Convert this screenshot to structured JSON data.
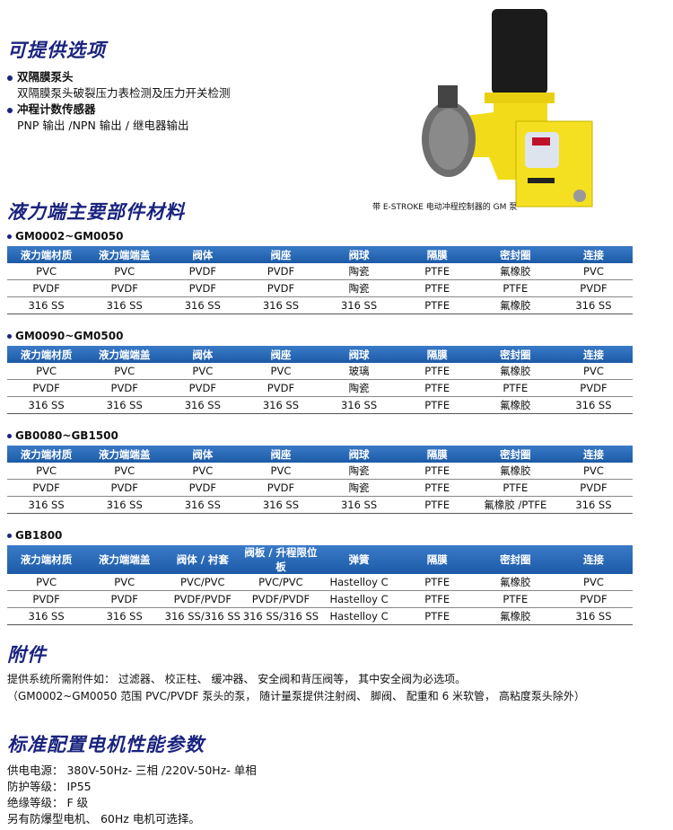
{
  "options": {
    "title": "可提供选项",
    "items": [
      {
        "heading": "双隔膜泵头",
        "detail": "双隔膜泵头破裂压力表检测及压力开关检测"
      },
      {
        "heading": "冲程计数传感器",
        "detail": "PNP 输出 /NPN 输出 / 继电器输出"
      }
    ]
  },
  "image": {
    "caption": "带 E-STROKE 电动冲程控制器的 GM 泵",
    "logo_text": "E-STROKE"
  },
  "materials": {
    "title": "液力端主要部件材料",
    "tables": [
      {
        "label": "GM0002~GM0050",
        "headers": [
          "液力端材质",
          "液力端端盖",
          "阀体",
          "阀座",
          "阀球",
          "隔膜",
          "密封圈",
          "连接"
        ],
        "rows": [
          [
            "PVC",
            "PVC",
            "PVDF",
            "PVDF",
            "陶瓷",
            "PTFE",
            "氟橡胶",
            "PVC"
          ],
          [
            "PVDF",
            "PVDF",
            "PVDF",
            "PVDF",
            "陶瓷",
            "PTFE",
            "PTFE",
            "PVDF"
          ],
          [
            "316 SS",
            "316 SS",
            "316 SS",
            "316 SS",
            "316 SS",
            "PTFE",
            "氟橡胶",
            "316 SS"
          ]
        ]
      },
      {
        "label": "GM0090~GM0500",
        "headers": [
          "液力端材质",
          "液力端端盖",
          "阀体",
          "阀座",
          "阀球",
          "隔膜",
          "密封圈",
          "连接"
        ],
        "rows": [
          [
            "PVC",
            "PVC",
            "PVC",
            "PVC",
            "玻璃",
            "PTFE",
            "氟橡胶",
            "PVC"
          ],
          [
            "PVDF",
            "PVDF",
            "PVDF",
            "PVDF",
            "陶瓷",
            "PTFE",
            "PTFE",
            "PVDF"
          ],
          [
            "316 SS",
            "316 SS",
            "316 SS",
            "316 SS",
            "316 SS",
            "PTFE",
            "氟橡胶",
            "316 SS"
          ]
        ]
      },
      {
        "label": "GB0080~GB1500",
        "headers": [
          "液力端材质",
          "液力端端盖",
          "阀体",
          "阀座",
          "阀球",
          "隔膜",
          "密封圈",
          "连接"
        ],
        "rows": [
          [
            "PVC",
            "PVC",
            "PVC",
            "PVC",
            "陶瓷",
            "PTFE",
            "氟橡胶",
            "PVC"
          ],
          [
            "PVDF",
            "PVDF",
            "PVDF",
            "PVDF",
            "陶瓷",
            "PTFE",
            "PTFE",
            "PVDF"
          ],
          [
            "316 SS",
            "316 SS",
            "316 SS",
            "316 SS",
            "316 SS",
            "PTFE",
            "氟橡胶 /PTFE",
            "316 SS"
          ]
        ]
      },
      {
        "label": "GB1800",
        "headers": [
          "液力端材质",
          "液力端端盖",
          "阀体 / 衬套",
          "阀板 / 升程限位板",
          "弹簧",
          "隔膜",
          "密封圈",
          "连接"
        ],
        "rows": [
          [
            "PVC",
            "PVC",
            "PVC/PVC",
            "PVC/PVC",
            "Hastelloy C",
            "PTFE",
            "氟橡胶",
            "PVC"
          ],
          [
            "PVDF",
            "PVDF",
            "PVDF/PVDF",
            "PVDF/PVDF",
            "Hastelloy C",
            "PTFE",
            "PTFE",
            "PVDF"
          ],
          [
            "316 SS",
            "316 SS",
            "316 SS/316 SS",
            "316 SS/316 SS",
            "Hastelloy C",
            "PTFE",
            "氟橡胶",
            "316 SS"
          ]
        ]
      }
    ]
  },
  "accessories": {
    "title": "附件",
    "lines": [
      "提供系统所需附件如： 过滤器、 校正柱、 缓冲器、 安全阀和背压阀等， 其中安全阀为必选项。",
      "（GM0002~GM0050 范围 PVC/PVDF 泵头的泵， 随计量泵提供注射阀、 脚阀、 配重和 6 米软管， 高粘度泵头除外）"
    ]
  },
  "motor": {
    "title": "标准配置电机性能参数",
    "lines": [
      "供电电源： 380V-50Hz- 三相 /220V-50Hz- 单相",
      "防护等级： IP55",
      "绝缘等级： F 级",
      "另有防爆型电机、 60Hz 电机可选择。"
    ]
  },
  "colors": {
    "title": "#1a237e",
    "table_header": "#1f5fa8",
    "pump_body": "#f2dc1a"
  }
}
